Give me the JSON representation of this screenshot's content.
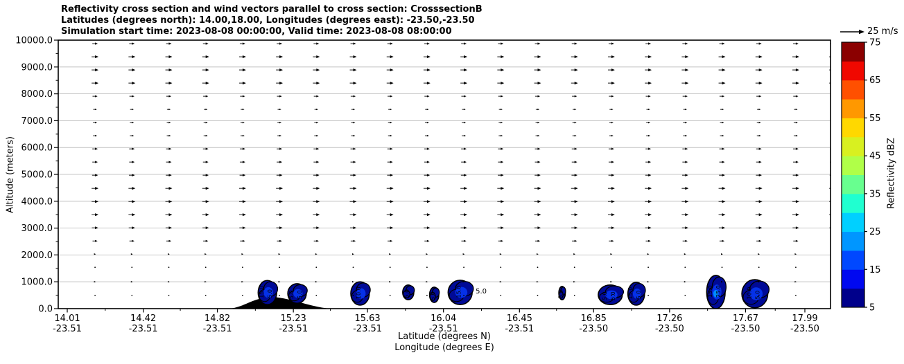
{
  "title": {
    "line1": "Reflectivity cross section and wind vectors parallel to cross section: CrosssectionB",
    "line2": "Latitudes (degrees north): 14.00,18.00, Longitudes (degrees east): -23.50,-23.50",
    "line3": "Simulation start time: 2023-08-08 00:00:00, Valid time: 2023-08-08 08:00:00"
  },
  "chart_data": {
    "type": "heatmap",
    "title": "Reflectivity cross section and wind vectors parallel to cross section: CrosssectionB",
    "xlabel": "Latitude (degrees N)",
    "xlabel2": "Longitude (degrees E)",
    "ylabel": "Altitude (meters)",
    "ylim": [
      0,
      10000
    ],
    "xlim_lat": [
      14.01,
      17.99
    ],
    "grid": "horizontal-gray-lines-every-1000m",
    "y_ticks": [
      {
        "value": 0,
        "label": "0.0"
      },
      {
        "value": 1000,
        "label": "1000.0"
      },
      {
        "value": 2000,
        "label": "2000.0"
      },
      {
        "value": 3000,
        "label": "3000.0"
      },
      {
        "value": 4000,
        "label": "4000.0"
      },
      {
        "value": 5000,
        "label": "5000.0"
      },
      {
        "value": 6000,
        "label": "6000.0"
      },
      {
        "value": 7000,
        "label": "7000.0"
      },
      {
        "value": 8000,
        "label": "8000.0"
      },
      {
        "value": 9000,
        "label": "9000.0"
      },
      {
        "value": 10000,
        "label": "10000.0"
      }
    ],
    "x_ticks": [
      {
        "lat": 14.01,
        "lat_label": "14.01",
        "lon_label": "-23.51"
      },
      {
        "lat": 14.42,
        "lat_label": "14.42",
        "lon_label": "-23.51"
      },
      {
        "lat": 14.82,
        "lat_label": "14.82",
        "lon_label": "-23.51"
      },
      {
        "lat": 15.23,
        "lat_label": "15.23",
        "lon_label": "-23.51"
      },
      {
        "lat": 15.63,
        "lat_label": "15.63",
        "lon_label": "-23.51"
      },
      {
        "lat": 16.04,
        "lat_label": "16.04",
        "lon_label": "-23.51"
      },
      {
        "lat": 16.45,
        "lat_label": "16.45",
        "lon_label": "-23.51"
      },
      {
        "lat": 16.85,
        "lat_label": "16.85",
        "lon_label": "-23.50"
      },
      {
        "lat": 17.26,
        "lat_label": "17.26",
        "lon_label": "-23.50"
      },
      {
        "lat": 17.67,
        "lat_label": "17.67",
        "lon_label": "-23.50"
      },
      {
        "lat": 17.99,
        "lat_label": "17.99",
        "lon_label": "-23.50"
      }
    ],
    "colorbar": {
      "label": "Reflectivity dBZ",
      "min": 5,
      "max": 75,
      "tick_values": [
        5,
        15,
        25,
        35,
        45,
        55,
        65,
        75
      ],
      "segment_step_dbz": 5,
      "segment_colors_bottom_to_top": [
        "#00008b",
        "#0008f0",
        "#0048ff",
        "#0096ff",
        "#00d0ff",
        "#20ffd0",
        "#68ff8f",
        "#b0ff48",
        "#d8f020",
        "#ffd800",
        "#ff9800",
        "#ff5000",
        "#f00800",
        "#8b0000"
      ]
    },
    "quiver_key": {
      "value_ms": 25,
      "label": "25 m/s"
    },
    "wind_profile_rows": [
      {
        "altitude_m": 9870,
        "speed_ms": 6
      },
      {
        "altitude_m": 9380,
        "speed_ms": 7.5
      },
      {
        "altitude_m": 8890,
        "speed_ms": 7.5
      },
      {
        "altitude_m": 8400,
        "speed_ms": 7.5
      },
      {
        "altitude_m": 7910,
        "speed_ms": 5.5
      },
      {
        "altitude_m": 7420,
        "speed_ms": 4
      },
      {
        "altitude_m": 6930,
        "speed_ms": 4.5
      },
      {
        "altitude_m": 6440,
        "speed_ms": 4.5
      },
      {
        "altitude_m": 5950,
        "speed_ms": 6
      },
      {
        "altitude_m": 5460,
        "speed_ms": 6
      },
      {
        "altitude_m": 4970,
        "speed_ms": 6.5
      },
      {
        "altitude_m": 4480,
        "speed_ms": 7.5
      },
      {
        "altitude_m": 3990,
        "speed_ms": 7.5
      },
      {
        "altitude_m": 3500,
        "speed_ms": 7.5
      },
      {
        "altitude_m": 3010,
        "speed_ms": 7
      },
      {
        "altitude_m": 2520,
        "speed_ms": 5.5
      },
      {
        "altitude_m": 2030,
        "speed_ms": 2
      },
      {
        "altitude_m": 1540,
        "speed_ms": 1
      },
      {
        "altitude_m": 1000,
        "speed_ms": 2
      },
      {
        "altitude_m": 490,
        "speed_ms": 1
      }
    ],
    "wind_columns": {
      "start_lat": 14.16,
      "step_deg": 0.199,
      "count": 21
    },
    "reflectivity_cells": [
      {
        "lat": 15.09,
        "lat_span": 0.1,
        "alt_bottom_m": 150,
        "alt_top_m": 1050,
        "labels": [
          "15.0",
          "5.0"
        ],
        "inner": true
      },
      {
        "lat": 15.25,
        "lat_span": 0.1,
        "alt_bottom_m": 200,
        "alt_top_m": 930,
        "labels": [
          "5.0",
          "5.0"
        ],
        "inner": true
      },
      {
        "lat": 15.59,
        "lat_span": 0.1,
        "alt_bottom_m": 130,
        "alt_top_m": 1000,
        "labels": [
          "10.0"
        ],
        "inner": true
      },
      {
        "lat": 15.85,
        "lat_span": 0.06,
        "alt_bottom_m": 330,
        "alt_top_m": 880,
        "labels": [
          "5.0"
        ],
        "inner": false
      },
      {
        "lat": 15.99,
        "lat_span": 0.05,
        "alt_bottom_m": 230,
        "alt_top_m": 800,
        "labels": [
          "5.0"
        ],
        "inner": false
      },
      {
        "lat": 16.13,
        "lat_span": 0.13,
        "alt_bottom_m": 150,
        "alt_top_m": 1060,
        "labels": [
          "15.0"
        ],
        "side_label": "5.0",
        "inner": true
      },
      {
        "lat": 16.68,
        "lat_span": 0.035,
        "alt_bottom_m": 330,
        "alt_top_m": 830,
        "labels": [
          "5.0"
        ],
        "inner": false
      },
      {
        "lat": 16.94,
        "lat_span": 0.13,
        "alt_bottom_m": 150,
        "alt_top_m": 880,
        "labels": [
          "5.0",
          "5.0"
        ],
        "inner": true
      },
      {
        "lat": 17.08,
        "lat_span": 0.09,
        "alt_bottom_m": 130,
        "alt_top_m": 980,
        "labels": [
          "15.0",
          "5.0"
        ],
        "inner": true
      },
      {
        "lat": 17.51,
        "lat_span": 0.1,
        "alt_bottom_m": 0,
        "alt_top_m": 1240,
        "labels": [
          "15.0",
          "25.0"
        ],
        "inner": true,
        "bright": true
      },
      {
        "lat": 17.72,
        "lat_span": 0.14,
        "alt_bottom_m": 30,
        "alt_top_m": 1080,
        "labels": [
          "10.0",
          "5.0"
        ],
        "inner": true
      }
    ],
    "terrain": {
      "lat_start": 14.885,
      "lat_peak": 15.115,
      "lat_end": 15.425,
      "peak_alt_m": 440
    }
  }
}
